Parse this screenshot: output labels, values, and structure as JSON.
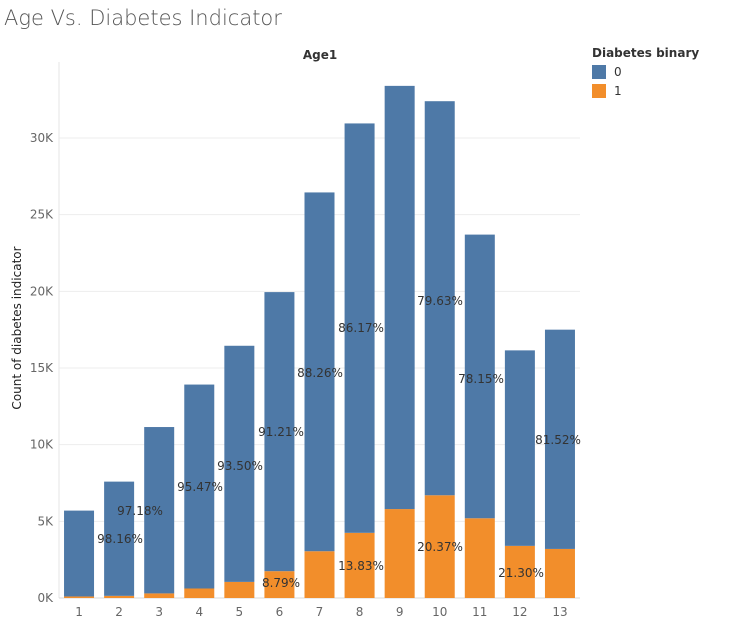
{
  "title": "Age Vs. Diabetes Indicator",
  "chart_data": {
    "type": "bar",
    "stacked": true,
    "header": "Age1",
    "ylabel": "Count of diabetes indicator",
    "ylim": [
      0,
      35000
    ],
    "yticks": [
      0,
      5000,
      10000,
      15000,
      20000,
      25000,
      30000
    ],
    "ytick_labels": [
      "0K",
      "5K",
      "10K",
      "15K",
      "20K",
      "25K",
      "30K"
    ],
    "categories": [
      "1",
      "2",
      "3",
      "4",
      "5",
      "6",
      "7",
      "8",
      "9",
      "10",
      "11",
      "12",
      "13"
    ],
    "series": [
      {
        "name": "0",
        "color": "#4e79a7",
        "values": [
          5600,
          7450,
          10850,
          13300,
          15400,
          18200,
          23400,
          26700,
          27600,
          25700,
          18500,
          12750,
          14300
        ]
      },
      {
        "name": "1",
        "color": "#f28e2b",
        "values": [
          100,
          140,
          300,
          620,
          1050,
          1750,
          3050,
          4250,
          5800,
          6700,
          5200,
          3400,
          3200
        ]
      }
    ],
    "data_labels": [
      "98.16%",
      "97.18%",
      "95.47%",
      "93.50%",
      "91.21%",
      "8.79%",
      "88.26%",
      "86.17%",
      "13.83%",
      "79.63%",
      "20.37%",
      "78.15%",
      "21.30%",
      "81.52%"
    ],
    "legend": {
      "title": "Diabetes binary",
      "position": "right"
    },
    "grid": true
  }
}
